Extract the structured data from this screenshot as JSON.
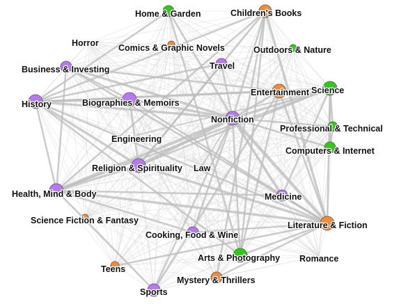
{
  "graph": {
    "groups": {
      "orange": "#f28c3c",
      "purple": "#b879f0",
      "green": "#34c61c"
    },
    "nodes": [
      {
        "id": "home-garden",
        "label": "Home & Garden",
        "group": "green",
        "weight": 3
      },
      {
        "id": "childrens-books",
        "label": "Children's Books",
        "group": "orange",
        "weight": 4
      },
      {
        "id": "horror",
        "label": "Horror",
        "group": "orange",
        "weight": 0
      },
      {
        "id": "comics",
        "label": "Comics & Graphic Novels",
        "group": "orange",
        "weight": 2
      },
      {
        "id": "outdoors",
        "label": "Outdoors & Nature",
        "group": "green",
        "weight": 2
      },
      {
        "id": "business",
        "label": "Business & Investing",
        "group": "purple",
        "weight": 3
      },
      {
        "id": "travel",
        "label": "Travel",
        "group": "purple",
        "weight": 3
      },
      {
        "id": "entertainment",
        "label": "Entertainment",
        "group": "orange",
        "weight": 4
      },
      {
        "id": "science",
        "label": "Science",
        "group": "green",
        "weight": 4
      },
      {
        "id": "history",
        "label": "History",
        "group": "purple",
        "weight": 4
      },
      {
        "id": "biographies",
        "label": "Biographies & Memoirs",
        "group": "purple",
        "weight": 4
      },
      {
        "id": "nonfiction",
        "label": "Nonfiction",
        "group": "purple",
        "weight": 4
      },
      {
        "id": "professional",
        "label": "Professional & Technical",
        "group": "green",
        "weight": 3
      },
      {
        "id": "engineering",
        "label": "Engineering",
        "group": "green",
        "weight": 0
      },
      {
        "id": "computers",
        "label": "Computers & Internet",
        "group": "green",
        "weight": 3
      },
      {
        "id": "religion",
        "label": "Religion & Spirituality",
        "group": "purple",
        "weight": 4
      },
      {
        "id": "law",
        "label": "Law",
        "group": "purple",
        "weight": 0
      },
      {
        "id": "health",
        "label": "Health, Mind & Body",
        "group": "purple",
        "weight": 4
      },
      {
        "id": "medicine",
        "label": "Medicine",
        "group": "purple",
        "weight": 3
      },
      {
        "id": "scifi",
        "label": "Science Fiction & Fantasy",
        "group": "orange",
        "weight": 2
      },
      {
        "id": "literature",
        "label": "Literature & Fiction",
        "group": "orange",
        "weight": 4
      },
      {
        "id": "cooking",
        "label": "Cooking, Food & Wine",
        "group": "purple",
        "weight": 3
      },
      {
        "id": "arts",
        "label": "Arts & Photography",
        "group": "green",
        "weight": 4
      },
      {
        "id": "romance",
        "label": "Romance",
        "group": "orange",
        "weight": 0
      },
      {
        "id": "teens",
        "label": "Teens",
        "group": "orange",
        "weight": 2
      },
      {
        "id": "mystery",
        "label": "Mystery & Thrillers",
        "group": "orange",
        "weight": 3
      },
      {
        "id": "sports",
        "label": "Sports",
        "group": "purple",
        "weight": 3
      }
    ],
    "strong_edges": [
      [
        "nonfiction",
        "religion",
        4
      ],
      [
        "nonfiction",
        "history",
        3
      ],
      [
        "nonfiction",
        "health",
        4
      ],
      [
        "nonfiction",
        "literature",
        4
      ],
      [
        "nonfiction",
        "biographies",
        3
      ],
      [
        "nonfiction",
        "business",
        3
      ],
      [
        "nonfiction",
        "science",
        3
      ],
      [
        "nonfiction",
        "entertainment",
        2
      ],
      [
        "nonfiction",
        "arts",
        2
      ],
      [
        "nonfiction",
        "travel",
        2
      ],
      [
        "nonfiction",
        "childrens-books",
        2
      ],
      [
        "nonfiction",
        "professional",
        2
      ],
      [
        "nonfiction",
        "computers",
        2
      ],
      [
        "nonfiction",
        "medicine",
        3
      ],
      [
        "nonfiction",
        "sports",
        2
      ],
      [
        "nonfiction",
        "cooking",
        2
      ],
      [
        "nonfiction",
        "home-garden",
        2
      ],
      [
        "history",
        "biographies",
        3
      ],
      [
        "history",
        "religion",
        3
      ],
      [
        "history",
        "literature",
        2
      ],
      [
        "history",
        "health",
        2
      ],
      [
        "history",
        "entertainment",
        2
      ],
      [
        "history",
        "science",
        2
      ],
      [
        "business",
        "health",
        2
      ],
      [
        "business",
        "biographies",
        2
      ],
      [
        "business",
        "literature",
        2
      ],
      [
        "biographies",
        "religion",
        2
      ],
      [
        "biographies",
        "literature",
        2
      ],
      [
        "religion",
        "health",
        3
      ],
      [
        "religion",
        "literature",
        3
      ],
      [
        "religion",
        "childrens-books",
        2
      ],
      [
        "religion",
        "science",
        2
      ],
      [
        "religion",
        "travel",
        2
      ],
      [
        "health",
        "literature",
        3
      ],
      [
        "health",
        "medicine",
        2
      ],
      [
        "health",
        "science",
        2
      ],
      [
        "health",
        "sports",
        2
      ],
      [
        "literature",
        "childrens-books",
        3
      ],
      [
        "literature",
        "mystery",
        2
      ],
      [
        "literature",
        "entertainment",
        2
      ],
      [
        "literature",
        "science",
        2
      ],
      [
        "literature",
        "arts",
        2
      ],
      [
        "literature",
        "medicine",
        2
      ],
      [
        "literature",
        "teens",
        2
      ],
      [
        "childrens-books",
        "arts",
        2
      ],
      [
        "childrens-books",
        "health",
        2
      ],
      [
        "childrens-books",
        "history",
        2
      ],
      [
        "science",
        "computers",
        2
      ],
      [
        "science",
        "professional",
        2
      ],
      [
        "professional",
        "computers",
        2
      ],
      [
        "entertainment",
        "arts",
        2
      ],
      [
        "entertainment",
        "business",
        2
      ],
      [
        "home-garden",
        "arts",
        2
      ],
      [
        "home-garden",
        "history",
        2
      ],
      [
        "cooking",
        "health",
        2
      ],
      [
        "cooking",
        "literature",
        2
      ],
      [
        "arts",
        "history",
        2
      ],
      [
        "sports",
        "entertainment",
        2
      ],
      [
        "mystery",
        "childrens-books",
        2
      ],
      [
        "travel",
        "history",
        2
      ],
      [
        "medicine",
        "science",
        2
      ],
      [
        "engineering",
        "science",
        1
      ],
      [
        "law",
        "nonfiction",
        1
      ]
    ]
  }
}
